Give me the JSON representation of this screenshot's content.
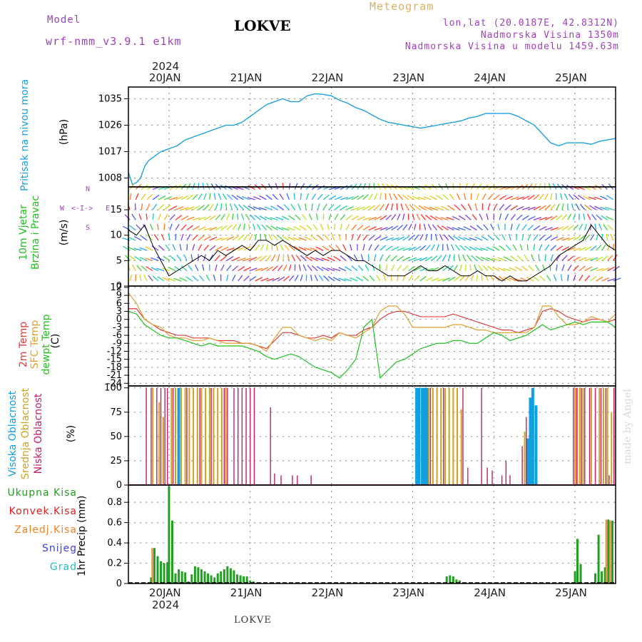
{
  "header": {
    "model_label": "Model",
    "model_name": "wrf-nmm_v3.9.1 e1km",
    "station": "LOKVE",
    "meteogram_label": "Meteogram",
    "lonlat": "lon,lat (20.0187E, 42.8312N)",
    "elevation": "Nadmorska Visina 1350m",
    "model_elevation": "Nadmorska Visina u modelu 1459.63m",
    "year_top": "2024",
    "year_bottom": "2024",
    "footer_station": "LOKVE",
    "credit": "made by Angel"
  },
  "colors": {
    "pressure": "#1ca0e0",
    "temp2m": "#e03c3c",
    "sfc_temp": "#e0a030",
    "dewpt": "#20c020",
    "high_cloud": "#10a0e0",
    "mid_cloud": "#d0a020",
    "low_cloud": "#c0206a",
    "total_precip": "#20a020",
    "conv_precip": "#e02020",
    "frozen_precip": "#f08020",
    "snow": "#4040e0",
    "hail": "#20c0c0"
  },
  "chart_data": {
    "type": "meteogram",
    "days": [
      "20JAN",
      "21JAN",
      "22JAN",
      "23JAN",
      "24JAN",
      "25JAN"
    ],
    "panels": [
      {
        "id": "pressure",
        "title": "Pritisak na nivou mora",
        "unit": "(hPa)",
        "yticks": [
          1008,
          1017,
          1026,
          1035
        ],
        "ylim": [
          1005,
          1039
        ],
        "x": [
          19.5,
          19.55,
          19.6,
          19.65,
          19.7,
          19.75,
          19.8,
          19.9,
          20.0,
          20.1,
          20.2,
          20.3,
          20.4,
          20.5,
          20.6,
          20.7,
          20.8,
          20.9,
          21.0,
          21.1,
          21.2,
          21.3,
          21.4,
          21.5,
          21.6,
          21.7,
          21.8,
          21.9,
          22.0,
          22.1,
          22.2,
          22.3,
          22.4,
          22.5,
          22.6,
          22.7,
          22.8,
          22.9,
          23.0,
          23.1,
          23.2,
          23.3,
          23.4,
          23.5,
          23.6,
          23.7,
          23.8,
          23.9,
          24.0,
          24.1,
          24.2,
          24.3,
          24.4,
          24.5,
          24.6,
          24.7,
          24.8,
          24.9,
          25.0,
          25.1,
          25.2,
          25.3,
          25.4,
          25.5
        ],
        "series": [
          {
            "values": [
              1010,
              1005.8,
              1006.5,
              1008,
              1012,
              1014,
              1015,
              1017,
              1018,
              1019,
              1021,
              1022,
              1023,
              1024,
              1025,
              1026,
              1026,
              1027,
              1029,
              1031,
              1033,
              1034,
              1035,
              1034,
              1034,
              1036,
              1036.7,
              1036.5,
              1036,
              1034.5,
              1033.5,
              1032,
              1031,
              1029.5,
              1028,
              1027,
              1026.5,
              1026,
              1025.5,
              1025,
              1025.5,
              1026,
              1026.5,
              1027,
              1027.5,
              1028.5,
              1029,
              1030,
              1030,
              1030,
              1030,
              1029,
              1027.5,
              1026,
              1023,
              1020,
              1019,
              1020,
              1020,
              1020,
              1019.5,
              1020.5,
              1021,
              1021.5
            ]
          }
        ]
      },
      {
        "id": "wind",
        "title": "10m Vjetar",
        "subtitle": "Brzina i Pravac",
        "unit": "(m/s)",
        "yticks": [
          0,
          5,
          10,
          15
        ],
        "ylim": [
          0,
          19.5
        ],
        "compass": [
          "N",
          "<-I->",
          "W",
          "E",
          "S"
        ],
        "x": [
          19.5,
          19.6,
          19.7,
          19.8,
          19.9,
          20.0,
          20.1,
          20.2,
          20.3,
          20.4,
          20.5,
          20.6,
          20.7,
          20.8,
          20.9,
          21.0,
          21.1,
          21.2,
          21.3,
          21.4,
          21.5,
          21.6,
          21.7,
          21.8,
          21.9,
          22.0,
          22.1,
          22.2,
          22.3,
          22.4,
          22.5,
          22.6,
          22.7,
          22.8,
          22.9,
          23.0,
          23.1,
          23.2,
          23.3,
          23.4,
          23.5,
          23.6,
          23.7,
          23.8,
          23.9,
          24.0,
          24.1,
          24.2,
          24.3,
          24.4,
          24.5,
          24.6,
          24.7,
          24.8,
          24.9,
          25.0,
          25.1,
          25.2,
          25.3,
          25.4,
          25.5
        ],
        "series": [
          {
            "values": [
              11,
              10,
              12,
              8,
              5,
              2,
              3,
              4,
              5,
              6,
              5,
              7,
              6,
              7,
              8,
              7,
              9,
              9,
              8,
              9,
              8,
              7,
              6,
              7,
              6,
              7,
              7,
              6,
              5,
              5,
              4,
              3,
              2,
              2,
              2,
              3,
              4,
              3,
              3,
              4,
              3,
              2,
              2,
              3,
              2,
              2,
              1,
              2,
              1,
              1,
              2,
              3,
              4,
              6,
              7,
              8,
              9,
              12,
              10,
              8,
              7
            ]
          }
        ]
      },
      {
        "id": "temperature",
        "title": [
          "2m Temp",
          "SFC Temp",
          "dewpt Temp"
        ],
        "unit": "(C)",
        "yticks": [
          12,
          9,
          6,
          3,
          0,
          -3,
          -6,
          -9,
          -12,
          -15,
          -18,
          -21,
          -24
        ],
        "ylim": [
          -25,
          12.5
        ],
        "x": [
          19.5,
          19.6,
          19.7,
          19.8,
          19.9,
          20.0,
          20.1,
          20.2,
          20.3,
          20.4,
          20.5,
          20.6,
          20.7,
          20.8,
          20.9,
          21.0,
          21.1,
          21.2,
          21.3,
          21.4,
          21.5,
          21.6,
          21.7,
          21.8,
          21.9,
          22.0,
          22.1,
          22.2,
          22.3,
          22.4,
          22.5,
          22.6,
          22.7,
          22.8,
          22.9,
          23.0,
          23.1,
          23.2,
          23.3,
          23.4,
          23.5,
          23.6,
          23.7,
          23.8,
          23.9,
          24.0,
          24.1,
          24.2,
          24.3,
          24.4,
          24.5,
          24.6,
          24.7,
          24.8,
          24.9,
          25.0,
          25.1,
          25.2,
          25.3,
          25.4,
          25.5
        ],
        "series": [
          {
            "name": "2m Temp",
            "values": [
              4,
              4,
              0,
              -2,
              -4,
              -5,
              -6,
              -6,
              -7,
              -7,
              -7,
              -8,
              -8,
              -8,
              -9,
              -9,
              -10,
              -11,
              -8,
              -5,
              -5,
              -6,
              -7,
              -7,
              -6,
              -7,
              -5,
              -6,
              -6,
              -4,
              -3,
              0,
              2,
              3,
              3,
              2,
              1,
              1,
              1,
              1,
              2,
              1,
              0,
              -1,
              -2,
              -3,
              -4,
              -4,
              -5,
              -4,
              -3,
              3,
              4,
              3,
              1,
              0,
              -1,
              0,
              0,
              -1,
              0
            ]
          },
          {
            "name": "SFC Temp",
            "values": [
              10,
              6,
              0,
              -2,
              -3,
              -6,
              -7,
              -7,
              -8,
              -8,
              -7,
              -8,
              -9,
              -9,
              -9,
              -9,
              -10,
              -12,
              -7,
              -3,
              -3,
              -6,
              -7,
              -8,
              -7,
              -8,
              -5,
              -6,
              -7,
              -5,
              -3,
              3,
              5,
              5,
              2,
              -3,
              -3,
              -3,
              -3,
              -3,
              -2,
              -2,
              -3,
              -4,
              -4,
              -5,
              -5,
              -5,
              -5,
              -5,
              -3,
              5,
              5,
              1,
              -2,
              -2,
              -1,
              1,
              0,
              -1,
              2
            ]
          },
          {
            "name": "dewpt Temp",
            "values": [
              3,
              2,
              -2,
              -4,
              -6,
              -7,
              -7,
              -8,
              -9,
              -10,
              -9,
              -10,
              -10,
              -10,
              -10,
              -11,
              -12,
              -14,
              -15,
              -14,
              -13,
              -14,
              -16,
              -18,
              -19,
              -20,
              -22,
              -19,
              -15,
              -3,
              0,
              -22,
              -19,
              -16,
              -15,
              -13,
              -11,
              -10,
              -9,
              -9,
              -8,
              -8,
              -9,
              -9,
              -7,
              -5,
              -6,
              -8,
              -7,
              -6,
              -4,
              -2,
              -4,
              -3,
              -2,
              -1,
              -2,
              -1,
              -1,
              -1,
              -3
            ]
          }
        ]
      },
      {
        "id": "cloud",
        "title": [
          "Visoka Oblacnost",
          "Srednja Oblacnost",
          "Niska Oblacnost"
        ],
        "unit": "(%)",
        "yticks": [
          0,
          25,
          50,
          75,
          100
        ],
        "ylim": [
          0,
          102
        ],
        "series": [
          {
            "name": "Visoka Oblacnost",
            "x": [
              20.12,
              23.05,
              23.08,
              23.12,
              23.15,
              23.18,
              24.42,
              24.45,
              24.48,
              24.52
            ],
            "values": [
              100,
              100,
              100,
              100,
              100,
              100,
              48,
              90,
              100,
              82
            ]
          },
          {
            "name": "Srednja Oblacnost",
            "x": [
              19.8,
              19.88,
              19.93,
              20.03,
              20.08,
              20.15,
              20.2,
              20.25,
              20.3,
              20.35,
              20.4,
              20.45,
              20.5,
              20.55,
              20.6,
              20.65,
              20.7,
              23.2,
              23.25,
              23.3,
              23.35,
              23.4,
              23.45,
              23.5,
              23.55,
              23.6,
              24.38,
              25.0,
              25.03,
              25.06,
              25.1,
              25.2,
              25.3,
              25.35,
              25.4,
              25.45
            ],
            "values": [
              100,
              85,
              70,
              100,
              100,
              100,
              100,
              100,
              100,
              100,
              100,
              100,
              100,
              100,
              100,
              100,
              100,
              100,
              100,
              100,
              100,
              100,
              100,
              100,
              100,
              78,
              55,
              100,
              100,
              100,
              100,
              100,
              100,
              100,
              100,
              75
            ]
          },
          {
            "name": "Niska Oblacnost",
            "x": [
              19.72,
              19.78,
              19.85,
              19.9,
              19.95,
              19.98,
              20.05,
              20.22,
              20.38,
              20.52,
              20.68,
              20.72,
              20.8,
              20.85,
              20.9,
              20.95,
              21.0,
              21.05,
              21.25,
              21.3,
              21.38,
              21.52,
              21.58,
              21.75,
              23.22,
              23.38,
              23.62,
              23.68,
              23.85,
              23.92,
              23.98,
              24.1,
              24.15,
              24.2,
              24.35,
              24.4,
              24.98,
              25.02,
              25.08,
              25.12,
              25.18,
              25.25,
              25.32,
              25.38,
              25.42,
              25.48
            ],
            "values": [
              100,
              100,
              100,
              100,
              100,
              100,
              100,
              100,
              100,
              100,
              100,
              100,
              100,
              100,
              100,
              100,
              100,
              100,
              80,
              12,
              10,
              10,
              10,
              10,
              100,
              100,
              100,
              18,
              100,
              18,
              15,
              10,
              25,
              10,
              40,
              70,
              100,
              100,
              100,
              100,
              100,
              100,
              100,
              100,
              10,
              100
            ]
          }
        ]
      },
      {
        "id": "precip",
        "title": "1hr Precip",
        "unit": "(mm)",
        "legend": [
          "Ukupna Kisa",
          "Konvek.Kisa",
          "Zaledj.Kisa",
          "Snijeg",
          "Grad"
        ],
        "yticks": [
          0,
          0.2,
          0.4,
          0.6,
          0.8
        ],
        "ylim": [
          0,
          0.97
        ],
        "series": [
          {
            "name": "Ukupna Kisa",
            "x": [
              19.78,
              19.82,
              19.86,
              19.9,
              19.94,
              19.98,
              20.0,
              20.04,
              20.08,
              20.12,
              20.16,
              20.2,
              20.24,
              20.28,
              20.32,
              20.36,
              20.4,
              20.44,
              20.48,
              20.52,
              20.56,
              20.6,
              20.64,
              20.68,
              20.72,
              20.76,
              20.8,
              20.84,
              20.88,
              20.92,
              20.96,
              21.0,
              21.04,
              21.08,
              21.12,
              23.42,
              23.46,
              23.5,
              23.54,
              23.58,
              25.0,
              25.03,
              25.07,
              25.25,
              25.29,
              25.33,
              25.37,
              25.41,
              25.46
            ],
            "values": [
              0.06,
              0.35,
              0.27,
              0.22,
              0.2,
              0.21,
              0.96,
              0.62,
              0.1,
              0.14,
              0.12,
              0.11,
              0.02,
              0.09,
              0.17,
              0.16,
              0.14,
              0.12,
              0.1,
              0.08,
              0.06,
              0.1,
              0.12,
              0.14,
              0.17,
              0.15,
              0.13,
              0.09,
              0.08,
              0.07,
              0.07,
              0.03,
              0.02,
              0.01,
              0.01,
              0.07,
              0.08,
              0.07,
              0.04,
              0.03,
              0.12,
              0.44,
              0.19,
              0.1,
              0.48,
              0.12,
              0.16,
              0.63,
              0.62
            ]
          },
          {
            "name": "Zaledj.Kisa",
            "x": [
              19.82,
              25.41,
              25.46
            ],
            "values": [
              0.35,
              0.63,
              0.62
            ]
          }
        ]
      }
    ]
  }
}
